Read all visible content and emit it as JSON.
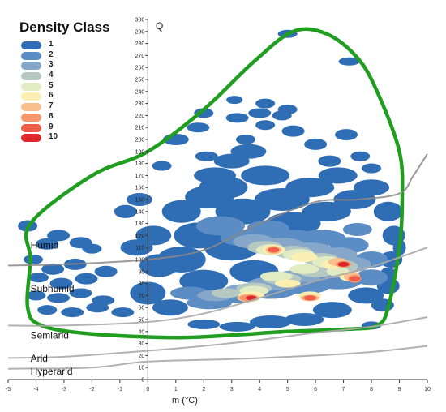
{
  "chart_data": {
    "type": "heatmap",
    "title": "",
    "xlabel": "m (°C)",
    "ylabel": "Q",
    "xlim": [
      -5,
      10
    ],
    "ylim": [
      0,
      300
    ],
    "x_ticks": [
      -5,
      -4,
      -3,
      -2,
      -1,
      0,
      1,
      2,
      3,
      4,
      5,
      6,
      7,
      8,
      9,
      10
    ],
    "y_ticks": [
      0,
      10,
      20,
      30,
      40,
      50,
      60,
      70,
      80,
      90,
      100,
      110,
      120,
      130,
      140,
      150,
      160,
      170,
      180,
      190,
      200,
      210,
      220,
      230,
      240,
      250,
      260,
      270,
      280,
      290,
      300
    ],
    "legend": {
      "title": "Density Class",
      "placement": "top-left",
      "classes": [
        {
          "label": "1",
          "color": "#2f6db5"
        },
        {
          "label": "2",
          "color": "#5b8cc4"
        },
        {
          "label": "3",
          "color": "#86a7c9"
        },
        {
          "label": "4",
          "color": "#b5c9c2"
        },
        {
          "label": "5",
          "color": "#e2ecc2"
        },
        {
          "label": "6",
          "color": "#fbefb3"
        },
        {
          "label": "7",
          "color": "#f9c08d"
        },
        {
          "label": "8",
          "color": "#f6966b"
        },
        {
          "label": "9",
          "color": "#ee5c47"
        },
        {
          "label": "10",
          "color": "#e0252b"
        }
      ]
    },
    "zone_labels": [
      {
        "label": "Humid",
        "x": -4.2,
        "y": 109
      },
      {
        "label": "Subhumid",
        "x": -4.2,
        "y": 73
      },
      {
        "label": "Semiarid",
        "x": -4.2,
        "y": 34
      },
      {
        "label": "Arid",
        "x": -4.2,
        "y": 15
      },
      {
        "label": "Hyperarid",
        "x": -4.2,
        "y": 4
      }
    ],
    "zone_boundaries": [
      {
        "name": "Humid/Subhumid",
        "color": "#888888",
        "points": [
          [
            -5,
            95
          ],
          [
            -3,
            96
          ],
          [
            0,
            100
          ],
          [
            2,
            108
          ],
          [
            4,
            130
          ],
          [
            6,
            148
          ],
          [
            7.5,
            150
          ],
          [
            9,
            155
          ],
          [
            9.5,
            170
          ],
          [
            10,
            188
          ]
        ]
      },
      {
        "name": "Subhumid/Semiarid",
        "color": "#aaaaaa",
        "points": [
          [
            -5,
            45
          ],
          [
            -3,
            45
          ],
          [
            0,
            48
          ],
          [
            2,
            55
          ],
          [
            4,
            68
          ],
          [
            6,
            82
          ],
          [
            8,
            94
          ],
          [
            10,
            110
          ]
        ]
      },
      {
        "name": "Semiarid/Arid",
        "color": "#aaaaaa",
        "points": [
          [
            -5,
            18
          ],
          [
            -3,
            19
          ],
          [
            0,
            24
          ],
          [
            2,
            28
          ],
          [
            4,
            33
          ],
          [
            6,
            39
          ],
          [
            8,
            44
          ],
          [
            10,
            52
          ]
        ]
      },
      {
        "name": "Arid/Hyperarid",
        "color": "#aaaaaa",
        "points": [
          [
            -5,
            9
          ],
          [
            -2,
            10
          ],
          [
            0,
            15
          ],
          [
            3,
            17
          ],
          [
            6,
            20
          ],
          [
            8,
            23
          ],
          [
            10,
            28
          ]
        ]
      }
    ],
    "envelope": {
      "color": "#1f9e1f",
      "points": [
        [
          -4.2,
          130
        ],
        [
          -2,
          170
        ],
        [
          0,
          190
        ],
        [
          2,
          225
        ],
        [
          3.8,
          265
        ],
        [
          5.2,
          290
        ],
        [
          6.4,
          288
        ],
        [
          7.5,
          268
        ],
        [
          8.2,
          240
        ],
        [
          9,
          190
        ],
        [
          9.1,
          150
        ],
        [
          9.0,
          110
        ],
        [
          8.6,
          60
        ],
        [
          8.2,
          45
        ],
        [
          7.2,
          42
        ],
        [
          5,
          40
        ],
        [
          3,
          37
        ],
        [
          1,
          35
        ],
        [
          -2,
          38
        ],
        [
          -3.8,
          45
        ],
        [
          -4.3,
          60
        ],
        [
          -4.2,
          100
        ]
      ]
    },
    "density_hotspots": [
      {
        "x": 4.5,
        "y": 108,
        "class": 9
      },
      {
        "x": 7.0,
        "y": 96,
        "class": 10
      },
      {
        "x": 7.4,
        "y": 84,
        "class": 9
      },
      {
        "x": 3.7,
        "y": 68,
        "class": 10
      },
      {
        "x": 5.8,
        "y": 68,
        "class": 9
      },
      {
        "x": 5.0,
        "y": 80,
        "class": 7
      }
    ]
  }
}
